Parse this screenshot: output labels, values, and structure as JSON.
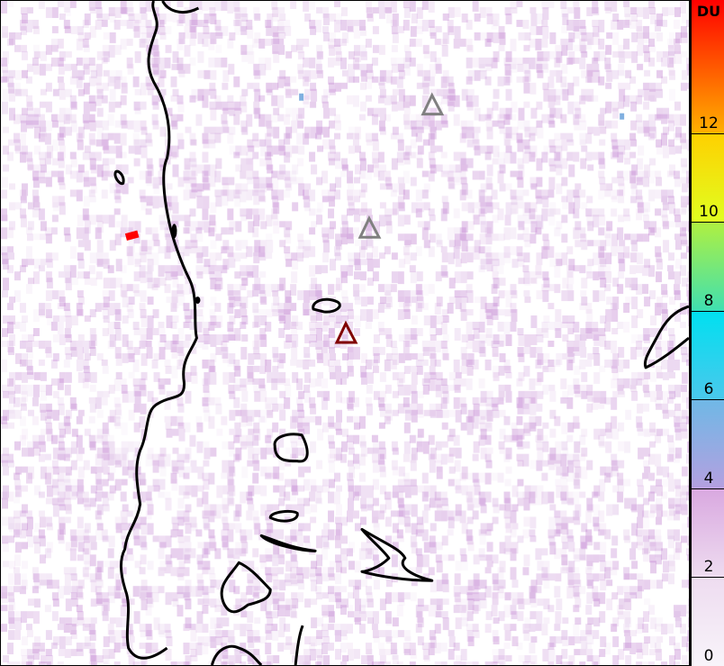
{
  "colorbar": {
    "unit": "DU",
    "range": [
      0,
      15
    ],
    "ticks": [
      "0",
      "2",
      "4",
      "6",
      "8",
      "10",
      "12"
    ],
    "stops": [
      {
        "value": 0,
        "color": "#f8f4fa"
      },
      {
        "value": 2,
        "color": "#eedcf0"
      },
      {
        "value": 4,
        "color": "#d9a8e0"
      },
      {
        "value": 4.01,
        "color": "#b4a0e0"
      },
      {
        "value": 6,
        "color": "#6fb8e6"
      },
      {
        "value": 6.01,
        "color": "#4ac8ec"
      },
      {
        "value": 8,
        "color": "#00e0f0"
      },
      {
        "value": 8.01,
        "color": "#40e0b0"
      },
      {
        "value": 10,
        "color": "#b0f040"
      },
      {
        "value": 10.01,
        "color": "#e0ff20"
      },
      {
        "value": 12,
        "color": "#ffd000"
      },
      {
        "value": 12.01,
        "color": "#ffb000"
      },
      {
        "value": 15,
        "color": "#ff0000"
      }
    ]
  },
  "map": {
    "background_color": "#ffffff",
    "noise_color": "#c080d0",
    "coastline_color": "#000000",
    "markers": [
      {
        "type": "volcano-triangle",
        "color": "#808080"
      },
      {
        "type": "volcano-triangle",
        "color": "#808080"
      },
      {
        "type": "volcano-triangle",
        "color": "#800000"
      }
    ],
    "hotspots": [
      {
        "value_du": 15,
        "color": "#ff0000"
      },
      {
        "value_du": 5,
        "color": "#80b0e0"
      },
      {
        "value_du": 5,
        "color": "#80b0e0"
      }
    ]
  }
}
